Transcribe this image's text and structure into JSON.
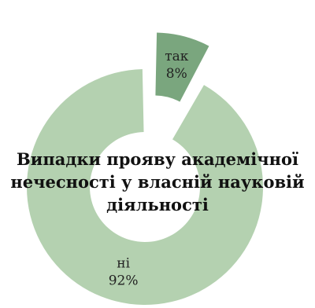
{
  "chart_data": {
    "type": "pie",
    "variant": "doughnut",
    "title_lines": [
      "Випадки прояву академічної",
      "нечесності у власній науковій",
      "діяльності"
    ],
    "slices": [
      {
        "label": "так",
        "value": 8,
        "value_label": "8%",
        "color": "#7aa67e",
        "exploded": true
      },
      {
        "label": "ні",
        "value": 92,
        "value_label": "92%",
        "color": "#b4d1b0",
        "exploded": false
      }
    ],
    "legend": "none"
  }
}
